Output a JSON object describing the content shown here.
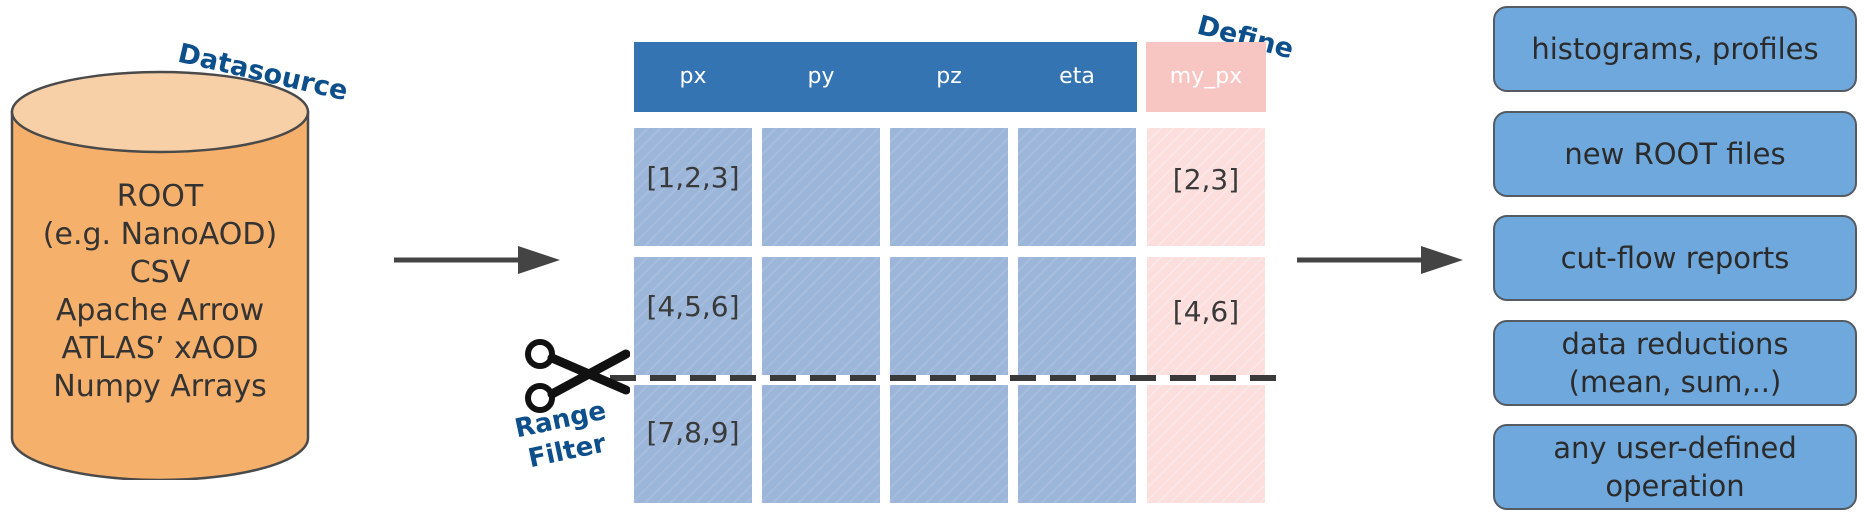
{
  "datasource": {
    "label": "Datasource",
    "lines": [
      "ROOT",
      "(e.g. NanoAOD)",
      "CSV",
      "Apache Arrow",
      "ATLAS’ xAOD",
      "Numpy Arrays"
    ]
  },
  "table": {
    "define_label": "Define",
    "columns": [
      "px",
      "py",
      "pz",
      "eta"
    ],
    "defined_column": "my_px",
    "rows": [
      {
        "px": "[1,2,3]",
        "my_px": "[2,3]"
      },
      {
        "px": "[4,5,6]",
        "my_px": "[4,6]"
      },
      {
        "px": "[7,8,9]",
        "my_px": ""
      }
    ]
  },
  "filter": {
    "label_line1": "Range",
    "label_line2": "Filter"
  },
  "outputs": [
    {
      "line1": "histograms, profiles",
      "line2": ""
    },
    {
      "line1": "new ROOT files",
      "line2": ""
    },
    {
      "line1": "cut-flow reports",
      "line2": ""
    },
    {
      "line1": "data reductions",
      "line2": "(mean, sum,..)"
    },
    {
      "line1": "any user-defined",
      "line2": "operation"
    }
  ],
  "colors": {
    "cylinder_fill": "#f5b06b",
    "cylinder_top": "#f8d0a8",
    "header_blue": "#3574b3",
    "cell_blue": "#9cb6da",
    "header_pink": "#f7c5c2",
    "cell_pink": "#fcdedd",
    "output_box": "#6fa8dc",
    "label_blue": "#0d4f8b"
  },
  "icons": {
    "arrows": "right-arrow-icon",
    "filter": "scissors-icon"
  }
}
